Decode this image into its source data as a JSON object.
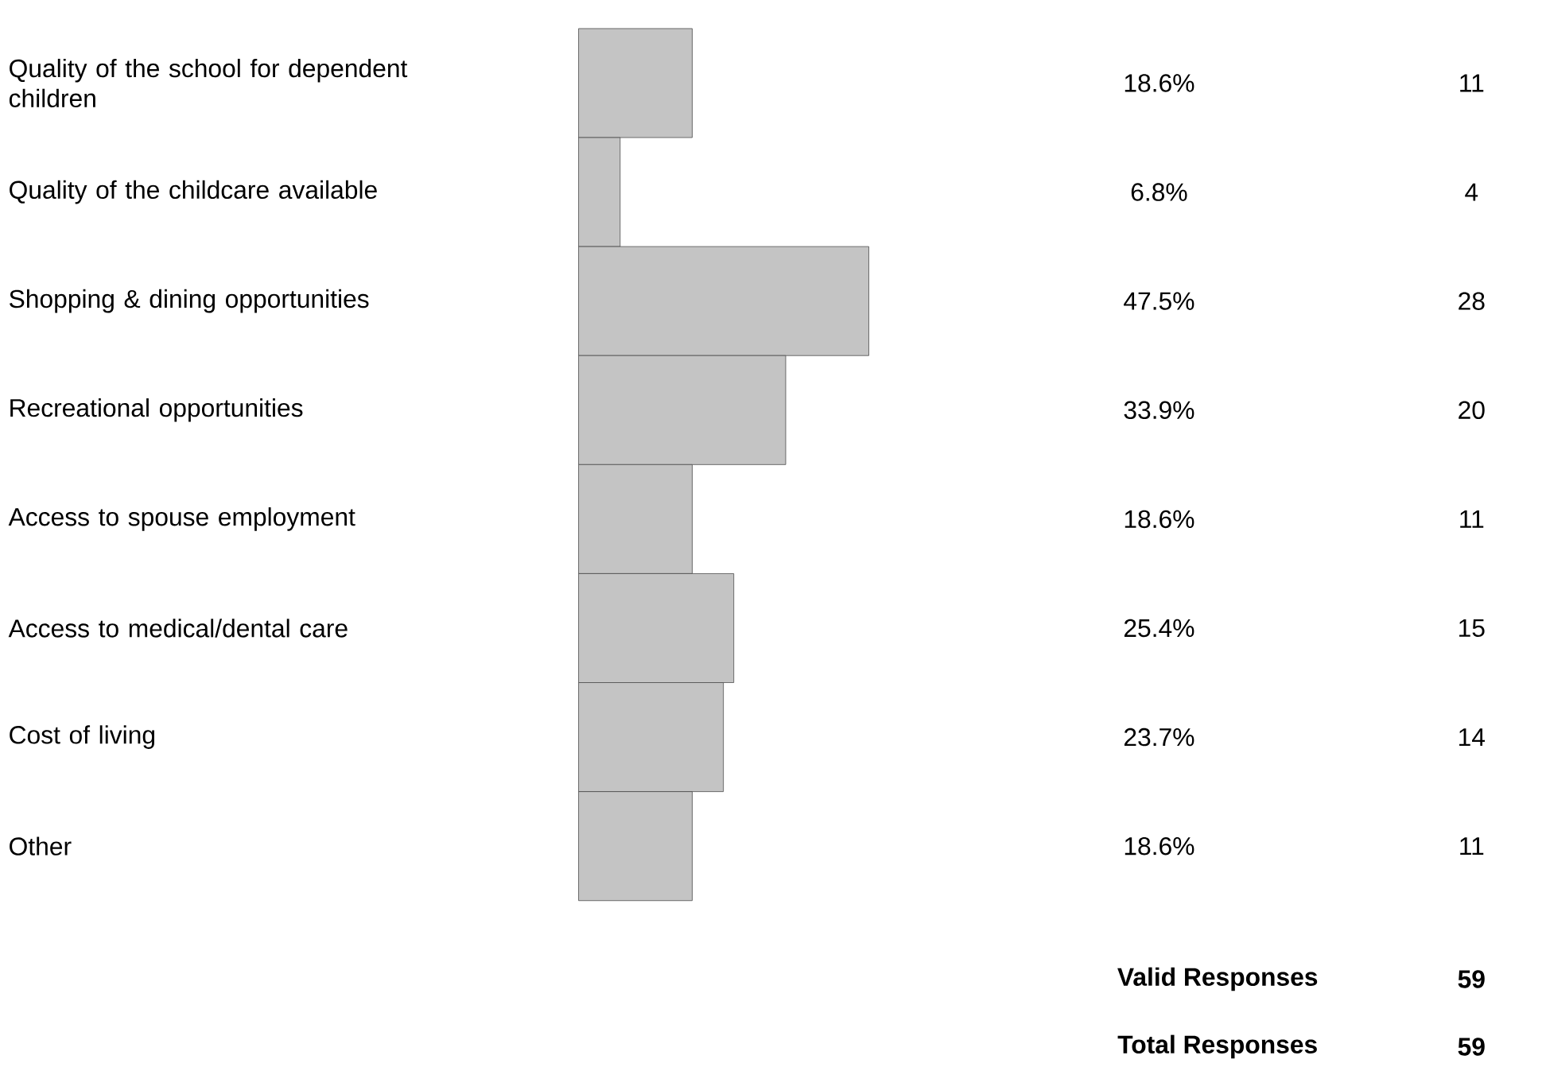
{
  "chart_data": {
    "type": "bar",
    "orientation": "horizontal",
    "color": "#c4c4c4",
    "categories": [
      "Quality of the school for dependent children",
      "Quality of the childcare available",
      "Shopping & dining opportunities",
      "Recreational opportunities",
      "Access to spouse employment",
      "Access to medical/dental care",
      "Cost of living",
      "Other"
    ],
    "values": [
      18.6,
      6.8,
      47.5,
      33.9,
      18.6,
      25.4,
      23.7,
      18.6
    ],
    "value_labels": [
      "18.6%",
      "6.8%",
      "47.5%",
      "33.9%",
      "18.6%",
      "25.4%",
      "23.7%",
      "18.6%"
    ],
    "annotations": [
      "11",
      "4",
      "28",
      "20",
      "11",
      "15",
      "14",
      "11",
      "Valid Responses",
      "59",
      "Total Responses",
      "59"
    ]
  }
}
